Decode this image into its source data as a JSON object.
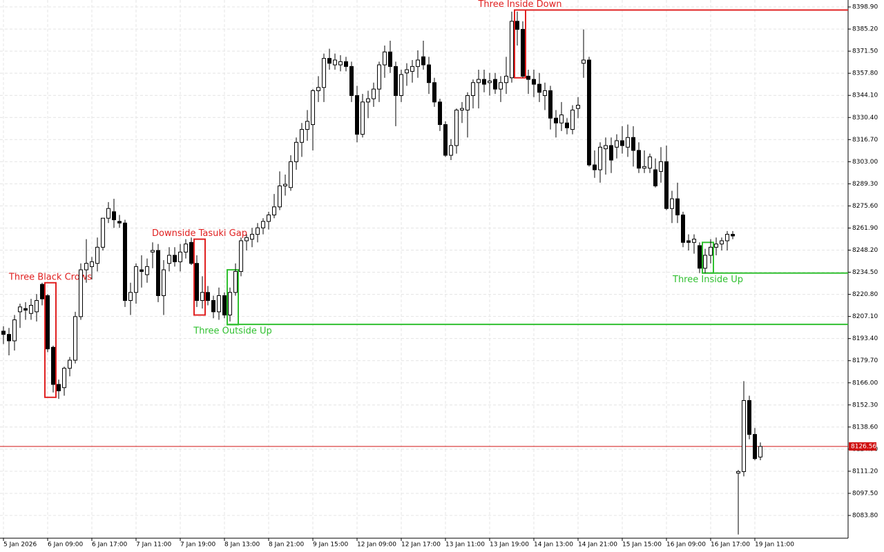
{
  "chart_data": {
    "type": "candlestick",
    "ylim": [
      8069.7,
      8403.2
    ],
    "yticks": [
      {
        "value": 8398.9,
        "label": "8398.90"
      },
      {
        "value": 8385.2,
        "label": "8385.20"
      },
      {
        "value": 8371.5,
        "label": "8371.50"
      },
      {
        "value": 8357.8,
        "label": "8357.80"
      },
      {
        "value": 8344.1,
        "label": "8344.10"
      },
      {
        "value": 8330.4,
        "label": "8330.40"
      },
      {
        "value": 8316.7,
        "label": "8316.70"
      },
      {
        "value": 8303,
        "label": "8303.00"
      },
      {
        "value": 8289.3,
        "label": "8289.30"
      },
      {
        "value": 8275.6,
        "label": "8275.60"
      },
      {
        "value": 8261.9,
        "label": "8261.90"
      },
      {
        "value": 8248.2,
        "label": "8248.20"
      },
      {
        "value": 8234.5,
        "label": "8234.50"
      },
      {
        "value": 8220.8,
        "label": "8220.80"
      },
      {
        "value": 8207.1,
        "label": "8207.10"
      },
      {
        "value": 8193.4,
        "label": "8193.40"
      },
      {
        "value": 8179.7,
        "label": "8179.70"
      },
      {
        "value": 8166,
        "label": "8166.00"
      },
      {
        "value": 8152.3,
        "label": "8152.30"
      },
      {
        "value": 8138.6,
        "label": "8138.60"
      },
      {
        "value": 8124.9,
        "label": "8124.90"
      },
      {
        "value": 8111.2,
        "label": "8111.20"
      },
      {
        "value": 8097.5,
        "label": "8097.50"
      },
      {
        "value": 8083.8,
        "label": "8083.80"
      }
    ],
    "xticks": [
      {
        "value": 0,
        "label": "5 Jan 2026"
      },
      {
        "value": 8,
        "label": "6 Jan 09:00"
      },
      {
        "value": 16,
        "label": "6 Jan 17:00"
      },
      {
        "value": 24,
        "label": "7 Jan 11:00"
      },
      {
        "value": 32,
        "label": "7 Jan 19:00"
      },
      {
        "value": 40,
        "label": "8 Jan 13:00"
      },
      {
        "value": 48,
        "label": "8 Jan 21:00"
      },
      {
        "value": 56,
        "label": "9 Jan 15:00"
      },
      {
        "value": 64,
        "label": "12 Jan 09:00"
      },
      {
        "value": 72,
        "label": "12 Jan 17:00"
      },
      {
        "value": 80,
        "label": "13 Jan 11:00"
      },
      {
        "value": 88,
        "label": "13 Jan 19:00"
      },
      {
        "value": 96,
        "label": "14 Jan 13:00"
      },
      {
        "value": 104,
        "label": "14 Jan 21:00"
      },
      {
        "value": 112,
        "label": "15 Jan 15:00"
      },
      {
        "value": 120,
        "label": "16 Jan 09:00"
      },
      {
        "value": 128,
        "label": "16 Jan 17:00"
      },
      {
        "value": 136,
        "label": "19 Jan 11:00"
      }
    ],
    "grid": true,
    "current_price": {
      "value": 8126.56,
      "label": "8126.56",
      "color": "#d01010"
    },
    "up_color": "#ffffff",
    "down_color": "#000000",
    "open": [
      8198,
      8196,
      8192,
      8210,
      8212,
      8209,
      8210,
      8227,
      8220,
      8188,
      8165,
      8163,
      8175,
      8180,
      8207,
      8236,
      8238,
      8240,
      8250,
      8268,
      8272,
      8266,
      8265,
      8217,
      8222,
      8236,
      8233,
      8247,
      8248,
      8220,
      8240,
      8245,
      8241,
      8247,
      8253,
      8240,
      8217,
      8222,
      8217,
      8210,
      8220,
      8208,
      8222,
      8235,
      8254,
      8255,
      8258,
      8262,
      8266,
      8270,
      8275,
      8288,
      8287,
      8303,
      8315,
      8323,
      8326,
      8347,
      8349,
      8367,
      8363,
      8363,
      8365,
      8362,
      8344,
      8320,
      8340,
      8342,
      8348,
      8363,
      8371,
      8362,
      8344,
      8358,
      8359,
      8362,
      8368,
      8363,
      8352,
      8340,
      8326,
      8307,
      8313,
      8335,
      8335,
      8344,
      8352,
      8354,
      8352,
      8354,
      8348,
      8352,
      8355,
      8390,
      8385,
      8356,
      8354,
      8351,
      8344,
      8347,
      8330,
      8327,
      8327,
      8323,
      8336,
      8364,
      8366,
      8301,
      8298,
      8311,
      8313,
      8312,
      8316,
      8312,
      8318,
      8310,
      8299,
      8299,
      8298,
      8297,
      8303,
      8274,
      8280,
      8270,
      8254,
      8253,
      8251,
      8237,
      8245,
      8250,
      8252,
      8254,
      8258,
      8110,
      8111,
      8155,
      8134,
      8120
    ],
    "high": [
      8201,
      8200,
      8208,
      8215,
      8216,
      8218,
      8221,
      8228,
      8221,
      8189,
      8168,
      8176,
      8182,
      8210,
      8240,
      8255,
      8244,
      8256,
      8268,
      8278,
      8280,
      8270,
      8267,
      8228,
      8240,
      8245,
      8243,
      8253,
      8252,
      8242,
      8250,
      8250,
      8252,
      8255,
      8256,
      8245,
      8232,
      8226,
      8220,
      8225,
      8222,
      8225,
      8240,
      8256,
      8258,
      8262,
      8265,
      8268,
      8272,
      8283,
      8297,
      8295,
      8307,
      8318,
      8327,
      8335,
      8348,
      8356,
      8370,
      8373,
      8370,
      8369,
      8368,
      8365,
      8350,
      8345,
      8347,
      8352,
      8365,
      8375,
      8378,
      8365,
      8360,
      8364,
      8366,
      8372,
      8378,
      8368,
      8355,
      8342,
      8328,
      8317,
      8336,
      8340,
      8346,
      8354,
      8360,
      8360,
      8358,
      8358,
      8356,
      8368,
      8396,
      8396,
      8390,
      8360,
      8360,
      8358,
      8352,
      8350,
      8335,
      8340,
      8330,
      8338,
      8343,
      8385,
      8368,
      8310,
      8315,
      8318,
      8318,
      8320,
      8325,
      8326,
      8325,
      8315,
      8310,
      8308,
      8305,
      8312,
      8313,
      8285,
      8290,
      8272,
      8258,
      8258,
      8253,
      8249,
      8255,
      8256,
      8256,
      8260,
      8260,
      8112,
      8167,
      8158,
      8138,
      8129
    ],
    "low": [
      8190,
      8183,
      8186,
      8200,
      8205,
      8205,
      8204,
      8214,
      8185,
      8160,
      8156,
      8158,
      8170,
      8178,
      8205,
      8228,
      8230,
      8235,
      8248,
      8265,
      8262,
      8262,
      8213,
      8208,
      8215,
      8225,
      8228,
      8237,
      8216,
      8208,
      8235,
      8238,
      8235,
      8243,
      8239,
      8213,
      8212,
      8214,
      8206,
      8205,
      8206,
      8204,
      8220,
      8232,
      8248,
      8250,
      8253,
      8258,
      8261,
      8268,
      8273,
      8282,
      8285,
      8298,
      8306,
      8316,
      8310,
      8340,
      8340,
      8360,
      8360,
      8359,
      8359,
      8340,
      8315,
      8318,
      8330,
      8337,
      8340,
      8355,
      8358,
      8325,
      8340,
      8350,
      8352,
      8355,
      8360,
      8345,
      8337,
      8322,
      8306,
      8304,
      8308,
      8327,
      8318,
      8336,
      8336,
      8346,
      8344,
      8345,
      8340,
      8345,
      8352,
      8375,
      8355,
      8345,
      8343,
      8340,
      8335,
      8323,
      8318,
      8322,
      8320,
      8320,
      8330,
      8355,
      8300,
      8293,
      8290,
      8295,
      8296,
      8305,
      8308,
      8306,
      8300,
      8296,
      8296,
      8296,
      8287,
      8290,
      8273,
      8265,
      8265,
      8250,
      8248,
      8246,
      8234,
      8234,
      8240,
      8245,
      8248,
      8248,
      8255,
      8072,
      8108,
      8131,
      8118,
      8118
    ],
    "close": [
      8196,
      8192,
      8205,
      8213,
      8211,
      8214,
      8217,
      8218,
      8187,
      8165,
      8161,
      8175,
      8180,
      8207,
      8236,
      8240,
      8241,
      8250,
      8268,
      8274,
      8267,
      8265,
      8217,
      8222,
      8238,
      8235,
      8238,
      8248,
      8220,
      8236,
      8245,
      8241,
      8247,
      8252,
      8240,
      8217,
      8222,
      8217,
      8210,
      8220,
      8208,
      8222,
      8235,
      8254,
      8256,
      8258,
      8262,
      8266,
      8270,
      8275,
      8288,
      8289,
      8303,
      8315,
      8323,
      8328,
      8347,
      8349,
      8367,
      8364,
      8366,
      8365,
      8362,
      8344,
      8320,
      8340,
      8342,
      8348,
      8363,
      8371,
      8362,
      8344,
      8357,
      8360,
      8362,
      8366,
      8363,
      8352,
      8340,
      8326,
      8307,
      8313,
      8335,
      8336,
      8344,
      8352,
      8354,
      8351,
      8353,
      8348,
      8352,
      8356,
      8390,
      8385,
      8356,
      8354,
      8351,
      8346,
      8347,
      8330,
      8327,
      8332,
      8324,
      8335,
      8338,
      8366,
      8301,
      8298,
      8312,
      8313,
      8304,
      8316,
      8313,
      8318,
      8310,
      8299,
      8300,
      8306,
      8288,
      8303,
      8274,
      8280,
      8270,
      8253,
      8253,
      8255,
      8237,
      8245,
      8250,
      8252,
      8254,
      8258,
      8257,
      8111,
      8155,
      8134,
      8119,
      8126.56
    ],
    "patterns": [
      {
        "name": "Three Black Crows",
        "color": "#e02020",
        "start": 8,
        "end": 9,
        "high": 8228,
        "low": 8157,
        "label_position": "above"
      },
      {
        "name": "Downside Tasuki Gap",
        "color": "#e02020",
        "start": 35,
        "end": 36,
        "high": 8255,
        "low": 8208,
        "label_position": "above"
      },
      {
        "name": "Three Outside Up",
        "color": "#30c030",
        "start": 41,
        "end": 42,
        "high": 8236,
        "low": 8202,
        "level": 8202.2,
        "label_position": "below"
      },
      {
        "name": "Three Inside Down",
        "color": "#e02020",
        "start": 93,
        "end": 94,
        "high": 8397,
        "low": 8355,
        "level": 8397,
        "label_position": "above"
      },
      {
        "name": "Three Inside Up",
        "color": "#30c030",
        "start": 127,
        "end": 128,
        "high": 8253,
        "low": 8234,
        "level": 8234,
        "label_position": "below"
      }
    ]
  }
}
